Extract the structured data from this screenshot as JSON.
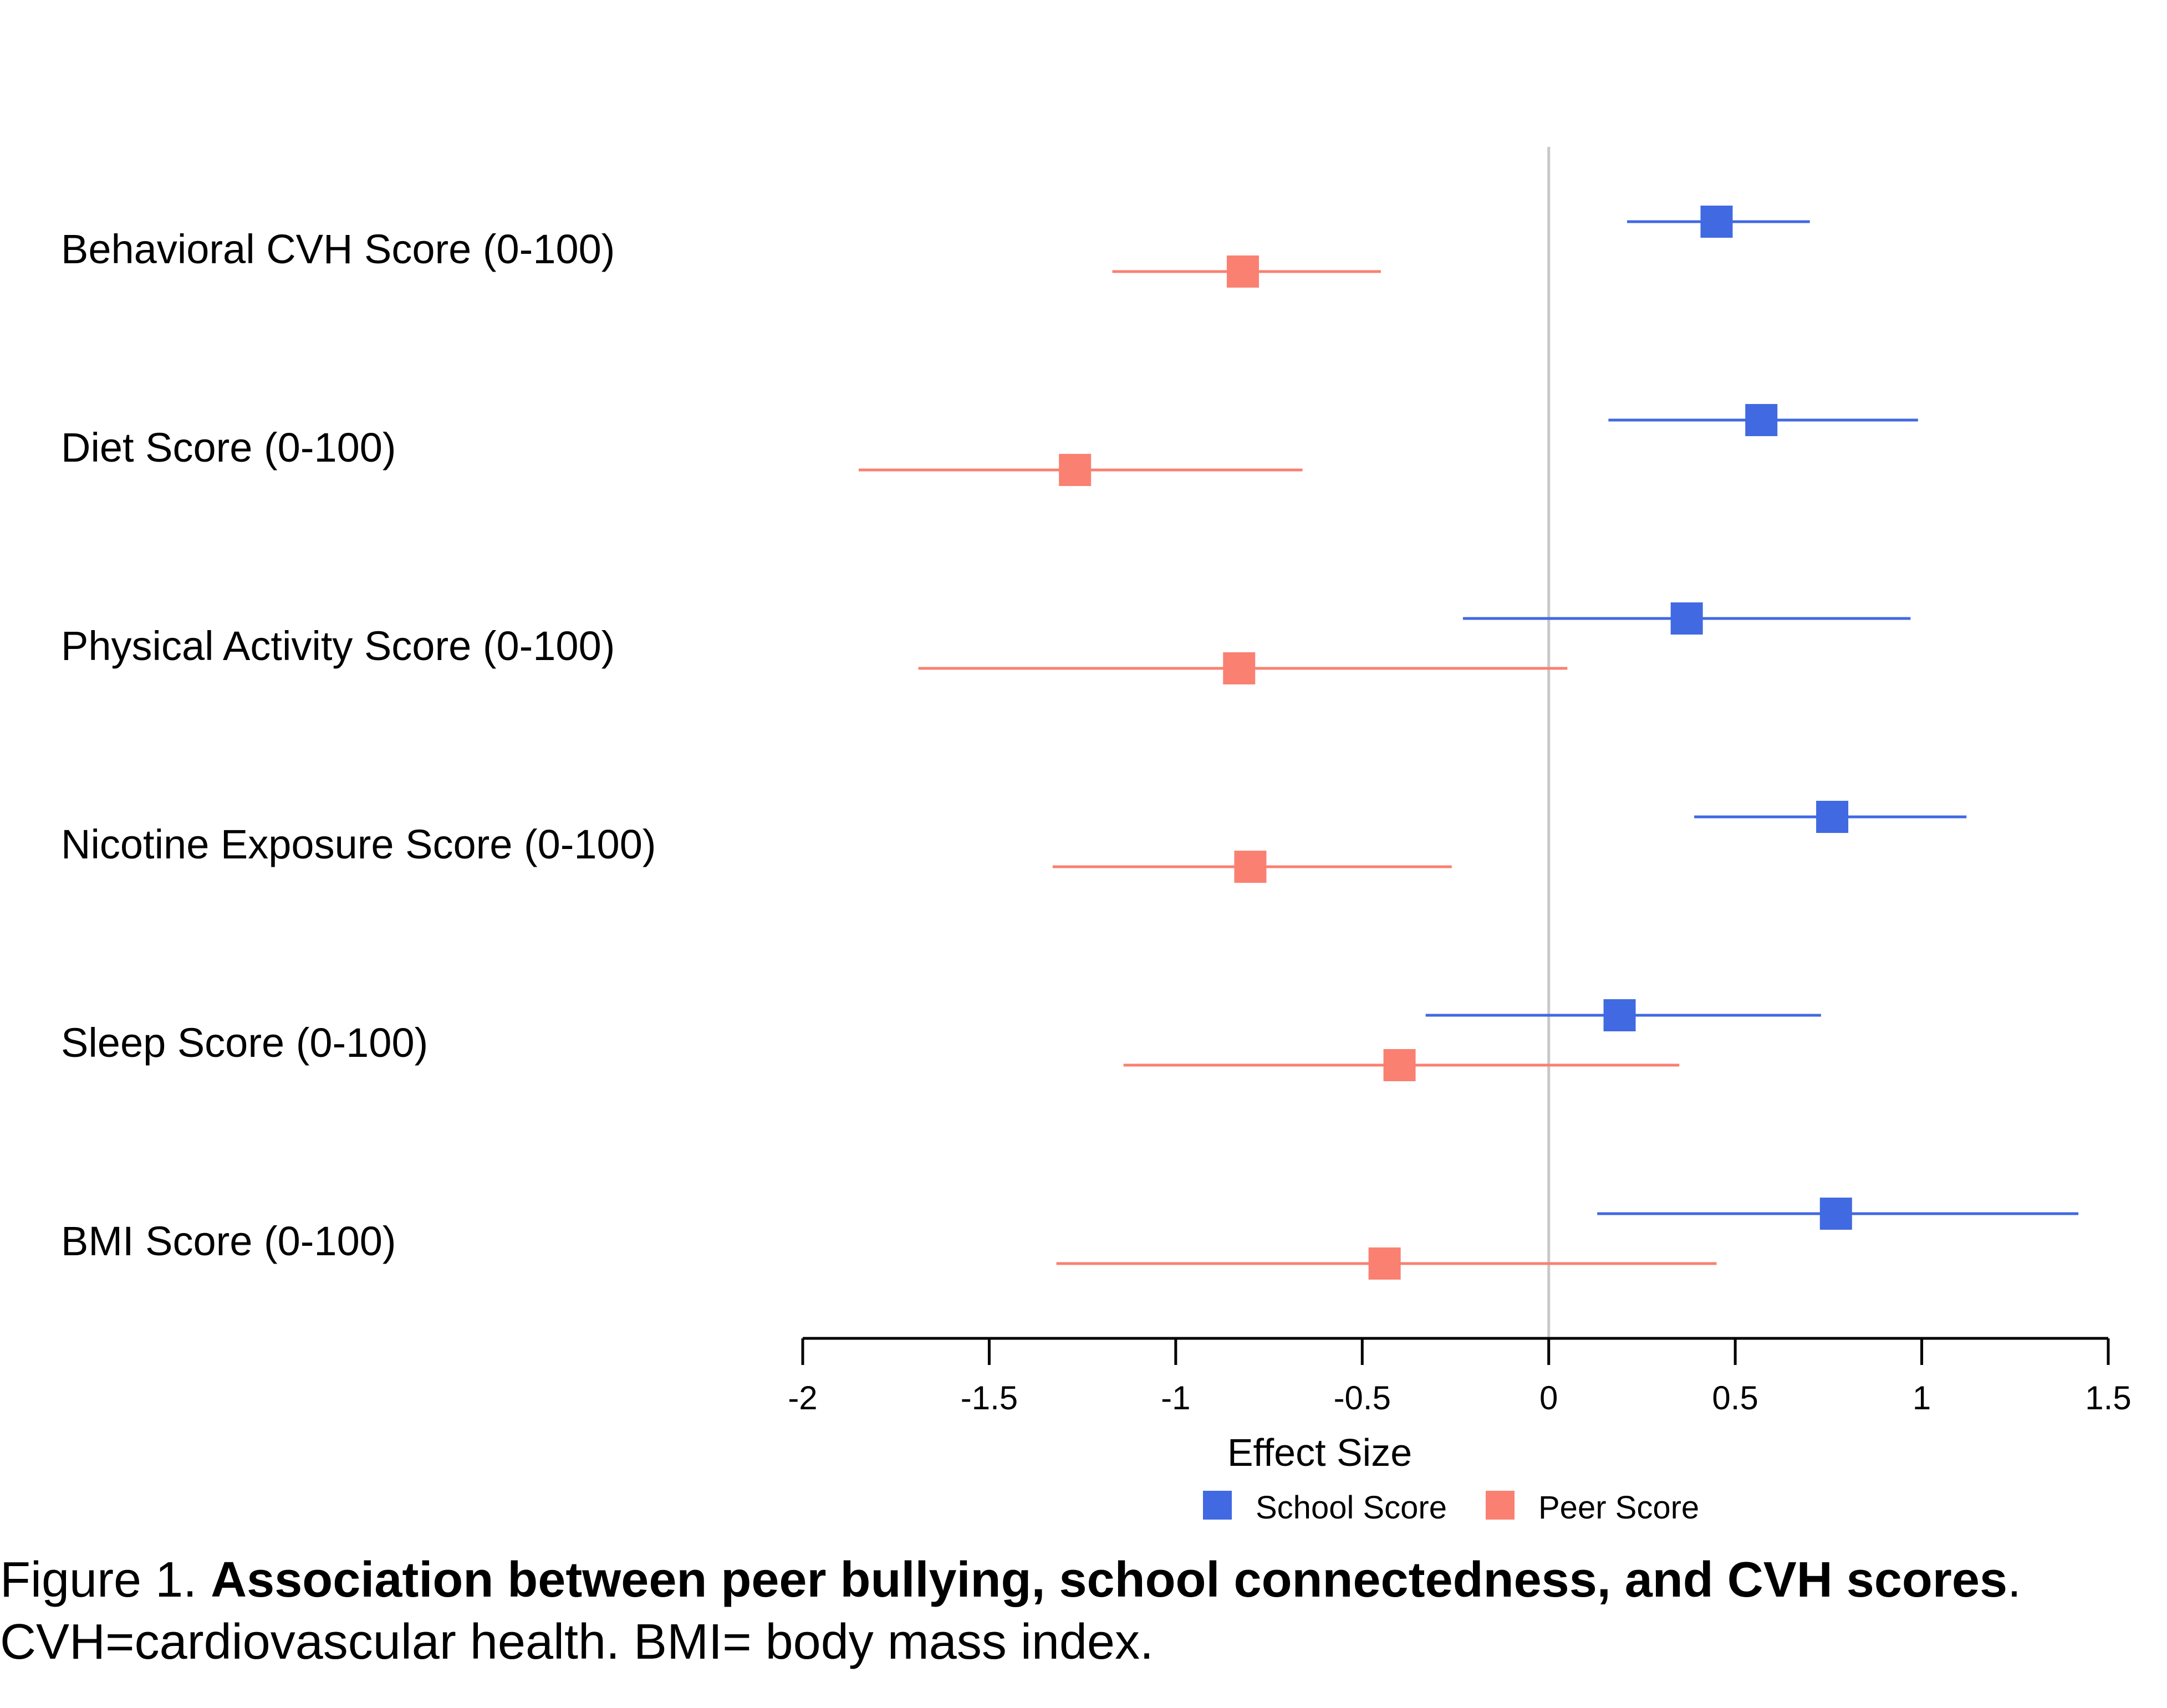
{
  "chart_data": {
    "type": "forest",
    "xlabel": "Effect Size",
    "xlim": [
      -2,
      1.5
    ],
    "x_ticks": [
      "-2",
      "-1.5",
      "-1",
      "-0.5",
      "0",
      "0.5",
      "1",
      "1.5"
    ],
    "reference_line": 0,
    "categories": [
      "Behavioral CVH Score (0-100)",
      "Diet Score (0-100)",
      "Physical Activity Score (0-100)",
      "Nicotine Exposure Score (0-100)",
      "Sleep Score (0-100)",
      "BMI Score (0-100)"
    ],
    "series": [
      {
        "name": "School Score",
        "color": "#4169E1",
        "estimates": [
          0.45,
          0.57,
          0.37,
          0.76,
          0.19,
          0.77
        ],
        "lower": [
          0.21,
          0.16,
          -0.23,
          0.39,
          -0.33,
          0.13
        ],
        "upper": [
          0.7,
          0.99,
          0.97,
          1.12,
          0.73,
          1.42
        ]
      },
      {
        "name": "Peer Score",
        "color": "#FA8072",
        "estimates": [
          -0.82,
          -1.27,
          -0.83,
          -0.8,
          -0.4,
          -0.44
        ],
        "lower": [
          -1.17,
          -1.85,
          -1.69,
          -1.33,
          -1.14,
          -1.32
        ],
        "upper": [
          -0.45,
          -0.66,
          0.05,
          -0.26,
          0.35,
          0.45
        ]
      }
    ],
    "legend_position": "bottom"
  },
  "caption": {
    "prefix": "Figure 1. ",
    "title": "Association between peer bullying, school connectedness, and CVH scores",
    "title_end": ".",
    "line2": "CVH=cardiovascular health. BMI= body mass index."
  }
}
